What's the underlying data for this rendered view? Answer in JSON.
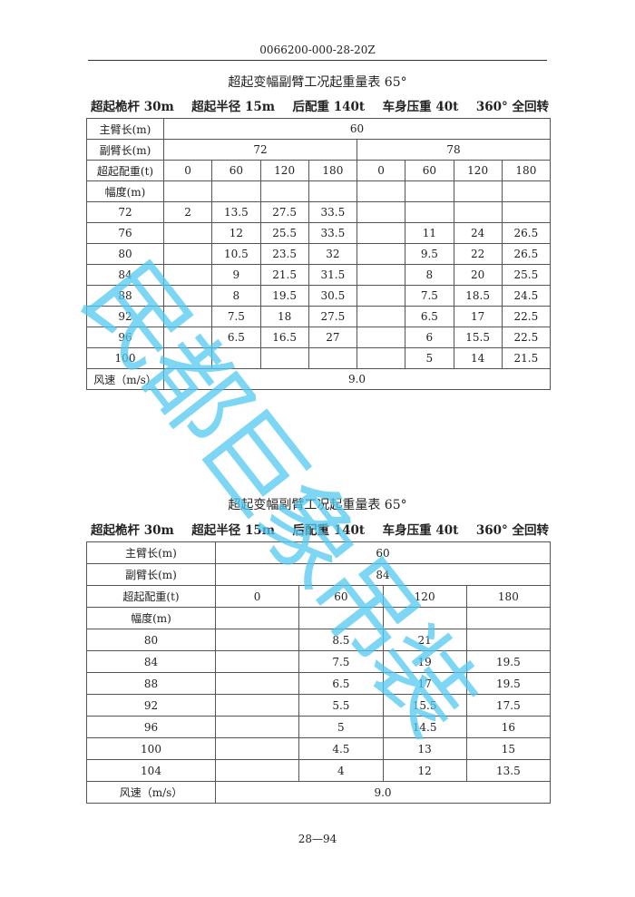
{
  "header": {
    "doc_number": "0066200-000-28-20Z"
  },
  "table1": {
    "title": "超起变幅副臂工况起重量表 65°",
    "params": [
      "超起桅杆 30m",
      "超起半径 15m",
      "后配重 140t",
      "车身压重 40t",
      "360° 全回转"
    ],
    "main_boom_label": "主臂长(m)",
    "main_boom": "60",
    "jib_label": "副臂长(m)",
    "jibs": [
      "72",
      "78"
    ],
    "counterweight_label": "超起配重(t)",
    "counterweights": [
      "0",
      "60",
      "120",
      "180",
      "0",
      "60",
      "120",
      "180"
    ],
    "radius_label": "幅度(m)",
    "rows": [
      {
        "r": "72",
        "v": [
          "2",
          "13.5",
          "27.5",
          "33.5",
          "",
          "",
          "",
          ""
        ]
      },
      {
        "r": "76",
        "v": [
          "",
          "12",
          "25.5",
          "33.5",
          "",
          "11",
          "24",
          "26.5"
        ]
      },
      {
        "r": "80",
        "v": [
          "",
          "10.5",
          "23.5",
          "32",
          "",
          "9.5",
          "22",
          "26.5"
        ]
      },
      {
        "r": "84",
        "v": [
          "",
          "9",
          "21.5",
          "31.5",
          "",
          "8",
          "20",
          "25.5"
        ]
      },
      {
        "r": "88",
        "v": [
          "",
          "8",
          "19.5",
          "30.5",
          "",
          "7.5",
          "18.5",
          "24.5"
        ]
      },
      {
        "r": "92",
        "v": [
          "",
          "7.5",
          "18",
          "27.5",
          "",
          "6.5",
          "17",
          "22.5"
        ]
      },
      {
        "r": "96",
        "v": [
          "",
          "6.5",
          "16.5",
          "27",
          "",
          "6",
          "15.5",
          "22.5"
        ]
      },
      {
        "r": "100",
        "v": [
          "",
          "",
          "",
          "",
          "",
          "5",
          "14",
          "21.5"
        ]
      }
    ],
    "wind_label": "风速（m/s）",
    "wind": "9.0"
  },
  "table2": {
    "title": "超起变幅副臂工况起重量表 65°",
    "params": [
      "超起桅杆 30m",
      "超起半径 15m",
      "后配重 140t",
      "车身压重 40t",
      "360° 全回转"
    ],
    "main_boom_label": "主臂长(m)",
    "main_boom": "60",
    "jib_label": "副臂长(m)",
    "jib": "84",
    "counterweight_label": "超起配重(t)",
    "counterweights": [
      "0",
      "60",
      "120",
      "180"
    ],
    "radius_label": "幅度(m)",
    "rows": [
      {
        "r": "80",
        "v": [
          "",
          "8.5",
          "21",
          ""
        ]
      },
      {
        "r": "84",
        "v": [
          "",
          "7.5",
          "19",
          "19.5"
        ]
      },
      {
        "r": "88",
        "v": [
          "",
          "6.5",
          "17",
          "19.5"
        ]
      },
      {
        "r": "92",
        "v": [
          "",
          "5.5",
          "15.5",
          "17.5"
        ]
      },
      {
        "r": "96",
        "v": [
          "",
          "5",
          "14.5",
          "16"
        ]
      },
      {
        "r": "100",
        "v": [
          "",
          "4.5",
          "13",
          "15"
        ]
      },
      {
        "r": "104",
        "v": [
          "",
          "4",
          "12",
          "13.5"
        ]
      }
    ],
    "wind_label": "风速（m/s）",
    "wind": "9.0"
  },
  "footer": {
    "page": "28—94"
  },
  "watermark": {
    "text": "民都巨象吊装",
    "color": "#50c8f0"
  }
}
